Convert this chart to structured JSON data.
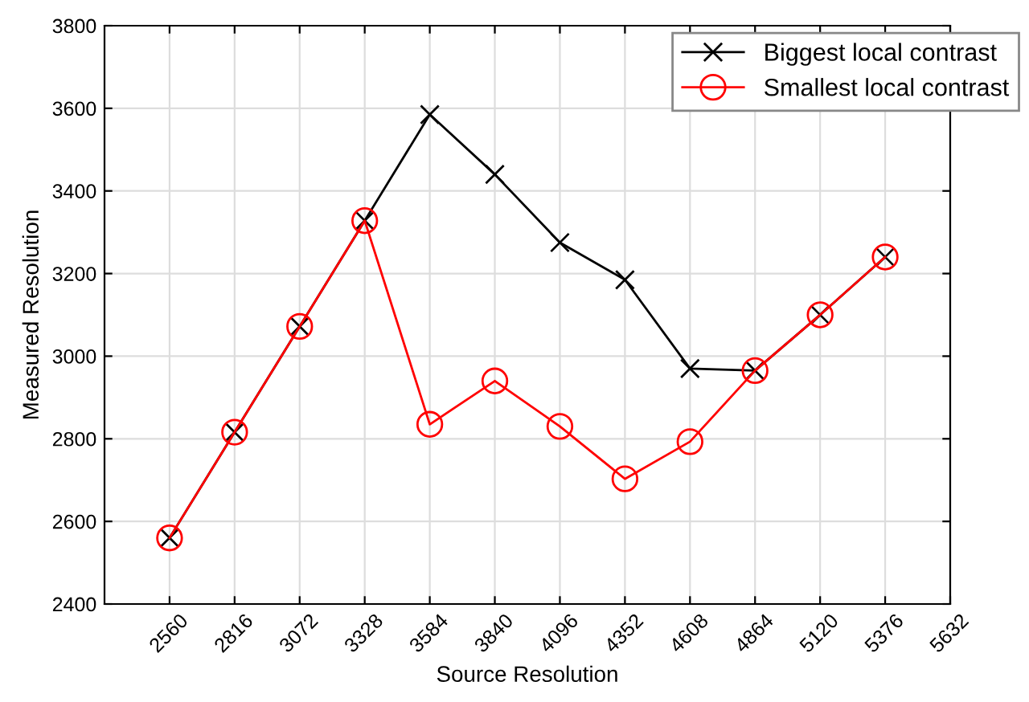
{
  "chart_data": {
    "type": "line",
    "xlabel": "Source Resolution",
    "ylabel": "Measured Resolution",
    "x": [
      2560,
      2816,
      3072,
      3328,
      3584,
      3840,
      4096,
      4352,
      4608,
      4864,
      5120,
      5376
    ],
    "series": [
      {
        "name": "Biggest local contrast",
        "color": "#000000",
        "marker": "cross",
        "values": [
          2560,
          2816,
          3072,
          3328,
          3585,
          3440,
          3275,
          3185,
          2970,
          2965,
          3100,
          3240
        ]
      },
      {
        "name": "Smallest local contrast",
        "color": "#ff0000",
        "marker": "circle",
        "values": [
          2560,
          2816,
          3072,
          3328,
          2835,
          2940,
          2830,
          2703,
          2793,
          2965,
          3100,
          3240
        ]
      }
    ],
    "xlim": [
      2304,
      5632
    ],
    "xticks": [
      2560,
      2816,
      3072,
      3328,
      3584,
      3840,
      4096,
      4352,
      4608,
      4864,
      5120,
      5376,
      5632
    ],
    "ylim": [
      2400,
      3800
    ],
    "yticks": [
      2400,
      2600,
      2800,
      3000,
      3200,
      3400,
      3600,
      3800
    ],
    "grid": true,
    "legend": "top right",
    "line_style": "solid"
  }
}
